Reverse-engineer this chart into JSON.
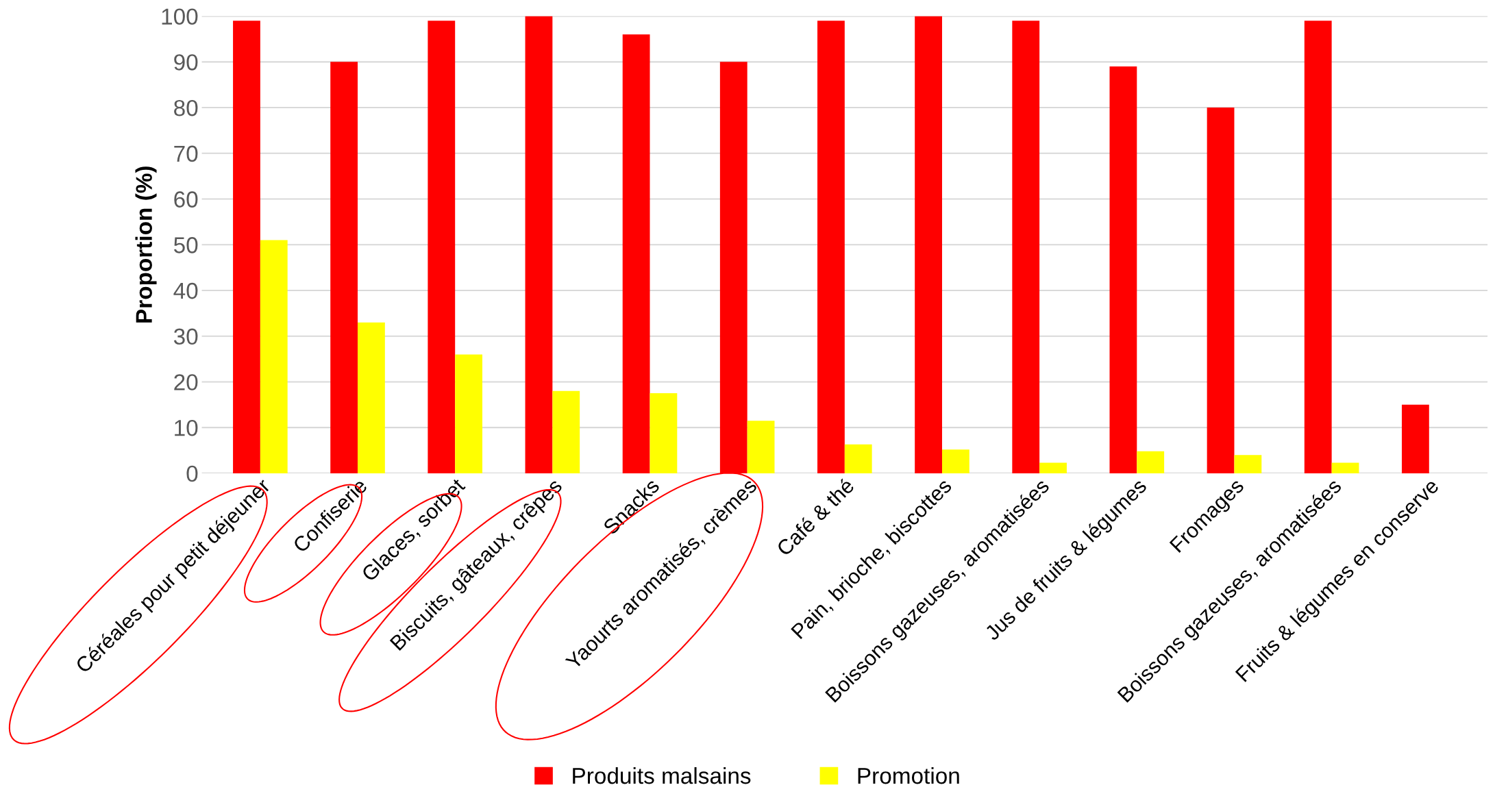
{
  "chart_data": {
    "type": "bar",
    "ylabel": "Proportion (%)",
    "categories": [
      "Céréales pour petit déjeuner",
      "Confiserie",
      "Glaces, sorbet",
      "Biscuits, gâteaux, crêpes",
      "Snacks",
      "Yaourts aromatisés, crèmes",
      "Café & thé",
      "Pain, brioche, biscottes",
      "Boissons gazeuses, aromatisées",
      "Jus de fruits & légumes",
      "Fromages",
      "Boissons gazeuses, aromatisées",
      "Fruits & légumes en conserve"
    ],
    "series": [
      {
        "name": "Produits malsains",
        "color": "#ff0000",
        "values": [
          99,
          90,
          99,
          100,
          96,
          90,
          99,
          100,
          99,
          89,
          80,
          99,
          15
        ]
      },
      {
        "name": "Promotion",
        "color": "#ffff00",
        "values": [
          51,
          33,
          26,
          18,
          17.5,
          11.5,
          6.3,
          5.2,
          2.3,
          4.8,
          4,
          2.3,
          0
        ]
      }
    ],
    "ylim": [
      0,
      100
    ],
    "yticks": [
      0,
      10,
      20,
      30,
      40,
      50,
      60,
      70,
      80,
      90,
      100
    ],
    "grid": "y",
    "legend": "bottom"
  }
}
